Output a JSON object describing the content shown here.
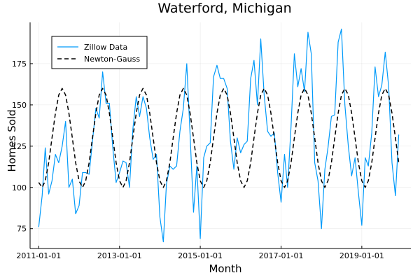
{
  "chart_data": {
    "type": "line",
    "title": "Waterford, Michigan",
    "xlabel": "Month",
    "ylabel": "Homes Sold",
    "x_range": [
      "2010-10-15",
      "2020-03-20"
    ],
    "ylim": [
      63,
      200
    ],
    "x_ticks": [
      "2011-01-01",
      "2013-01-01",
      "2015-01-01",
      "2017-01-01",
      "2019-01-01"
    ],
    "y_ticks": [
      75,
      100,
      125,
      150,
      175
    ],
    "grid": true,
    "legend_position": "top-left",
    "series": [
      {
        "name": "Zillow Data",
        "color": "#009AFA",
        "style": "solid",
        "dates": [
          "2011-01-01",
          "2011-02-01",
          "2011-03-01",
          "2011-04-01",
          "2011-05-01",
          "2011-06-01",
          "2011-07-01",
          "2011-08-01",
          "2011-09-01",
          "2011-10-01",
          "2011-11-01",
          "2011-12-01",
          "2012-01-01",
          "2012-02-01",
          "2012-03-01",
          "2012-04-01",
          "2012-05-01",
          "2012-06-01",
          "2012-07-01",
          "2012-08-01",
          "2012-09-01",
          "2012-10-01",
          "2012-11-01",
          "2012-12-01",
          "2013-01-01",
          "2013-02-01",
          "2013-03-01",
          "2013-04-01",
          "2013-05-01",
          "2013-06-01",
          "2013-07-01",
          "2013-08-01",
          "2013-09-01",
          "2013-10-01",
          "2013-11-01",
          "2013-12-01",
          "2014-01-01",
          "2014-02-01",
          "2014-03-01",
          "2014-04-01",
          "2014-05-01",
          "2014-06-01",
          "2014-07-01",
          "2014-08-01",
          "2014-09-01",
          "2014-10-01",
          "2014-11-01",
          "2014-12-01",
          "2015-01-01",
          "2015-02-01",
          "2015-03-01",
          "2015-04-01",
          "2015-05-01",
          "2015-06-01",
          "2015-07-01",
          "2015-08-01",
          "2015-09-01",
          "2015-10-01",
          "2015-11-01",
          "2015-12-01",
          "2016-01-01",
          "2016-02-01",
          "2016-03-01",
          "2016-04-01",
          "2016-05-01",
          "2016-06-01",
          "2016-07-01",
          "2016-08-01",
          "2016-09-01",
          "2016-10-01",
          "2016-11-01",
          "2016-12-01",
          "2017-01-01",
          "2017-02-01",
          "2017-03-01",
          "2017-04-01",
          "2017-05-01",
          "2017-06-01",
          "2017-07-01",
          "2017-08-01",
          "2017-09-01",
          "2017-10-01",
          "2017-11-01",
          "2017-12-01",
          "2018-01-01",
          "2018-02-01",
          "2018-03-01",
          "2018-04-01",
          "2018-05-01",
          "2018-06-01",
          "2018-07-01",
          "2018-08-01",
          "2018-09-01",
          "2018-10-01",
          "2018-11-01",
          "2018-12-01",
          "2019-01-01",
          "2019-02-01",
          "2019-03-01",
          "2019-04-01",
          "2019-05-01",
          "2019-06-01",
          "2019-07-01",
          "2019-08-01",
          "2019-09-01",
          "2019-10-01",
          "2019-11-01",
          "2019-12-01"
        ],
        "values": [
          76,
          95,
          124,
          96,
          104,
          120,
          115,
          125,
          140,
          100,
          105,
          84,
          89,
          109,
          109,
          108,
          128,
          148,
          142,
          170,
          151,
          151,
          124,
          103,
          109,
          116,
          115,
          100,
          135,
          155,
          143,
          155,
          148,
          130,
          117,
          120,
          82,
          67,
          102,
          113,
          111,
          113,
          134,
          148,
          175,
          132,
          85,
          113,
          69,
          118,
          125,
          127,
          167,
          174,
          166,
          166,
          160,
          128,
          111,
          130,
          121,
          126,
          128,
          166,
          177,
          150,
          190,
          156,
          134,
          131,
          133,
          109,
          91,
          120,
          100,
          137,
          181,
          161,
          172,
          158,
          194,
          181,
          115,
          104,
          75,
          111,
          124,
          143,
          144,
          188,
          196,
          150,
          125,
          107,
          118,
          97,
          77,
          118,
          113,
          133,
          173,
          155,
          162,
          182,
          161,
          115,
          95,
          132
        ]
      },
      {
        "name": "Newton-Gauss",
        "color": "#000000",
        "style": "dashed",
        "dates": [
          "2011-01-01",
          "2011-02-01",
          "2011-03-01",
          "2011-04-01",
          "2011-05-01",
          "2011-06-01",
          "2011-07-01",
          "2011-08-01",
          "2011-09-01",
          "2011-10-01",
          "2011-11-01",
          "2011-12-01",
          "2012-01-01",
          "2012-02-01",
          "2012-03-01",
          "2012-04-01",
          "2012-05-01",
          "2012-06-01",
          "2012-07-01",
          "2012-08-01",
          "2012-09-01",
          "2012-10-01",
          "2012-11-01",
          "2012-12-01",
          "2013-01-01",
          "2013-02-01",
          "2013-03-01",
          "2013-04-01",
          "2013-05-01",
          "2013-06-01",
          "2013-07-01",
          "2013-08-01",
          "2013-09-01",
          "2013-10-01",
          "2013-11-01",
          "2013-12-01",
          "2014-01-01",
          "2014-02-01",
          "2014-03-01",
          "2014-04-01",
          "2014-05-01",
          "2014-06-01",
          "2014-07-01",
          "2014-08-01",
          "2014-09-01",
          "2014-10-01",
          "2014-11-01",
          "2014-12-01",
          "2015-01-01",
          "2015-02-01",
          "2015-03-01",
          "2015-04-01",
          "2015-05-01",
          "2015-06-01",
          "2015-07-01",
          "2015-08-01",
          "2015-09-01",
          "2015-10-01",
          "2015-11-01",
          "2015-12-01",
          "2016-01-01",
          "2016-02-01",
          "2016-03-01",
          "2016-04-01",
          "2016-05-01",
          "2016-06-01",
          "2016-07-01",
          "2016-08-01",
          "2016-09-01",
          "2016-10-01",
          "2016-11-01",
          "2016-12-01",
          "2017-01-01",
          "2017-02-01",
          "2017-03-01",
          "2017-04-01",
          "2017-05-01",
          "2017-06-01",
          "2017-07-01",
          "2017-08-01",
          "2017-09-01",
          "2017-10-01",
          "2017-11-01",
          "2017-12-01",
          "2018-01-01",
          "2018-02-01",
          "2018-03-01",
          "2018-04-01",
          "2018-05-01",
          "2018-06-01",
          "2018-07-01",
          "2018-08-01",
          "2018-09-01",
          "2018-10-01",
          "2018-11-01",
          "2018-12-01",
          "2019-01-01",
          "2019-02-01",
          "2019-03-01",
          "2019-04-01",
          "2019-05-01",
          "2019-06-01",
          "2019-07-01",
          "2019-08-01",
          "2019-09-01",
          "2019-10-01",
          "2019-11-01",
          "2019-12-01"
        ],
        "values": [
          103,
          100,
          104,
          115,
          130,
          145,
          156,
          160,
          156,
          145,
          130,
          115,
          104,
          100,
          104,
          115,
          130,
          145,
          156,
          160,
          156,
          145,
          130,
          115,
          104,
          100,
          104,
          115,
          130,
          145,
          156,
          160,
          156,
          145,
          130,
          115,
          104,
          100,
          104,
          115,
          130,
          145,
          156,
          160,
          156,
          145,
          130,
          115,
          104,
          100,
          104,
          115,
          130,
          145,
          156,
          160,
          156,
          145,
          130,
          115,
          104,
          100,
          104,
          115,
          130,
          145,
          156,
          160,
          156,
          145,
          130,
          115,
          104,
          100,
          104,
          115,
          130,
          145,
          156,
          160,
          156,
          145,
          130,
          115,
          104,
          100,
          104,
          115,
          130,
          145,
          156,
          160,
          156,
          145,
          130,
          115,
          104,
          100,
          104,
          115,
          130,
          145,
          156,
          160,
          156,
          145,
          130,
          115
        ]
      }
    ]
  }
}
